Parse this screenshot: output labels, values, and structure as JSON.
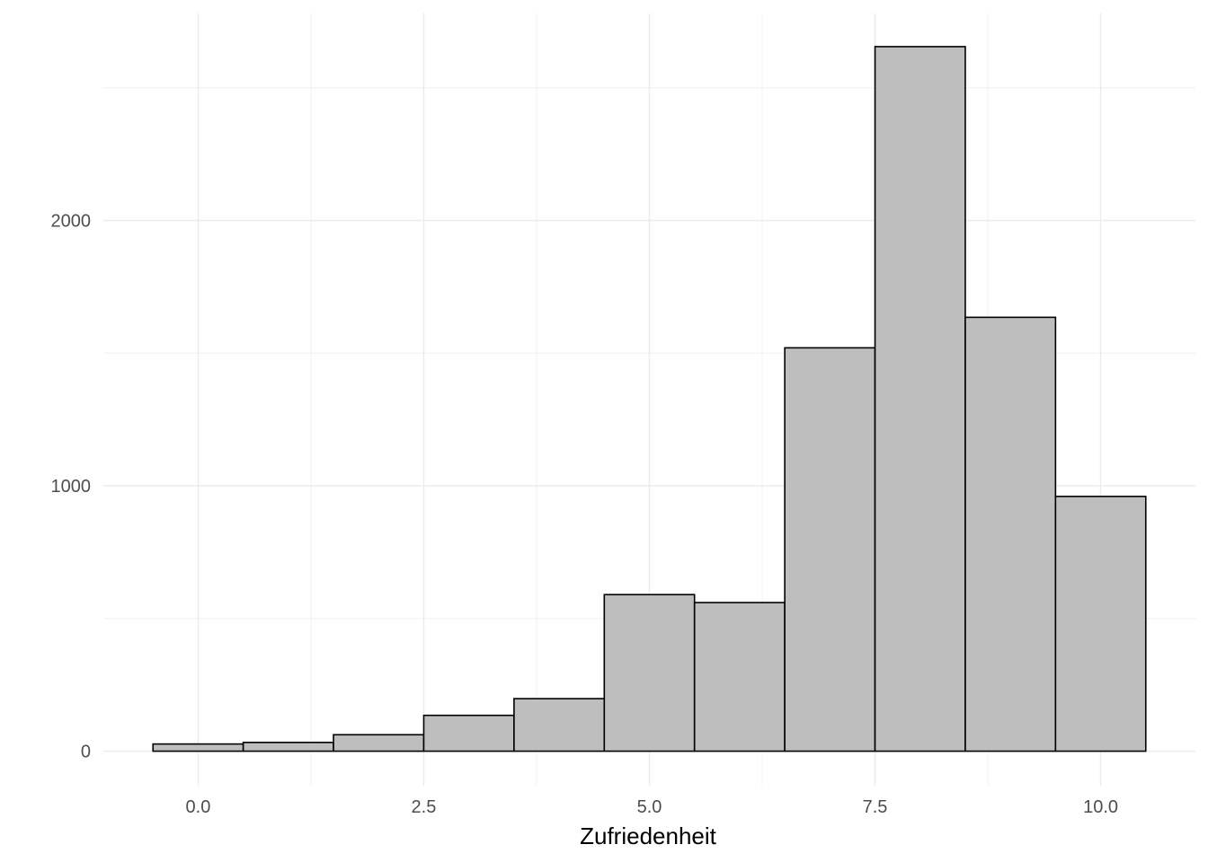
{
  "chart_data": {
    "type": "bar",
    "subtype": "histogram",
    "xlabel": "Zufriedenheit",
    "ylabel": "",
    "x_ticks": [
      "0.0",
      "2.5",
      "5.0",
      "7.5",
      "10.0"
    ],
    "x_tick_values": [
      0,
      2.5,
      5,
      7.5,
      10
    ],
    "y_ticks": [
      "0",
      "1000",
      "2000"
    ],
    "y_tick_values": [
      0,
      1000,
      2000
    ],
    "xlim": [
      -1.05,
      11.05
    ],
    "ylim": [
      -130,
      2780
    ],
    "bin_width": 1,
    "categories": [
      "0",
      "1",
      "2",
      "3",
      "4",
      "5",
      "6",
      "7",
      "8",
      "9",
      "10"
    ],
    "bin_centers": [
      0,
      1,
      2,
      3,
      4,
      5,
      6,
      7,
      8,
      9,
      10
    ],
    "values": [
      27,
      33,
      62,
      135,
      198,
      590,
      560,
      1520,
      2655,
      1635,
      960
    ],
    "grid": true,
    "bar_fill": "#bebebe",
    "bar_stroke": "#000000",
    "grid_color": "#ebebeb"
  }
}
